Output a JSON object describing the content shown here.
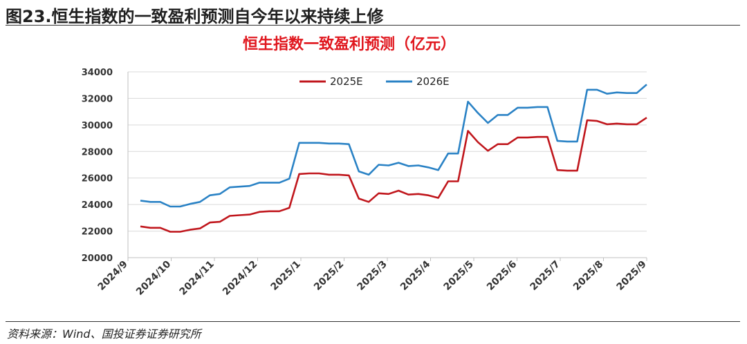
{
  "figure": {
    "title": "图23.恒生指数的一致盈利预测自今年以来持续上修",
    "source": "资料来源：Wind、国投证券证券研究所"
  },
  "colors": {
    "series_2025E": "#c0161c",
    "series_2026E": "#2a82c5",
    "title": "#e0161d",
    "grid": "#d9d9d9"
  },
  "chart_data": {
    "type": "line",
    "title": "恒生指数一致盈利预测（亿元）",
    "xlabel": "",
    "ylabel": "",
    "ylim": [
      20000,
      34000
    ],
    "yticks": [
      20000,
      22000,
      24000,
      26000,
      28000,
      30000,
      32000,
      34000
    ],
    "x_tick_labels": [
      "2024/9",
      "2024/10",
      "2024/11",
      "2024/12",
      "2025/1",
      "2025/2",
      "2025/3",
      "2025/4",
      "2025/5",
      "2025/6",
      "2025/7",
      "2025/8",
      "2025/9"
    ],
    "grid": "horizontal",
    "legend_position": "top",
    "series": [
      {
        "name": "2025E",
        "values": [
          22350,
          22250,
          22250,
          21950,
          21950,
          22100,
          22200,
          22650,
          22700,
          23150,
          23200,
          23250,
          23450,
          23500,
          23500,
          23750,
          26300,
          26350,
          26350,
          26250,
          26250,
          26200,
          24450,
          24200,
          24850,
          24800,
          25050,
          24750,
          24800,
          24700,
          24500,
          25750,
          25750,
          29550,
          28700,
          28050,
          28550,
          28550,
          29050,
          29050,
          29100,
          29100,
          26600,
          26550,
          26550,
          30350,
          30300,
          30050,
          30100,
          30050,
          30050,
          30550
        ]
      },
      {
        "name": "2026E",
        "values": [
          24300,
          24200,
          24200,
          23850,
          23850,
          24050,
          24200,
          24700,
          24800,
          25300,
          25350,
          25400,
          25650,
          25650,
          25650,
          25950,
          28650,
          28650,
          28650,
          28600,
          28600,
          28550,
          26500,
          26250,
          27000,
          26950,
          27150,
          26900,
          26950,
          26800,
          26600,
          27850,
          27850,
          31750,
          30900,
          30150,
          30750,
          30750,
          31300,
          31300,
          31350,
          31350,
          28800,
          28750,
          28750,
          32650,
          32650,
          32350,
          32450,
          32400,
          32400,
          33050
        ]
      }
    ]
  }
}
